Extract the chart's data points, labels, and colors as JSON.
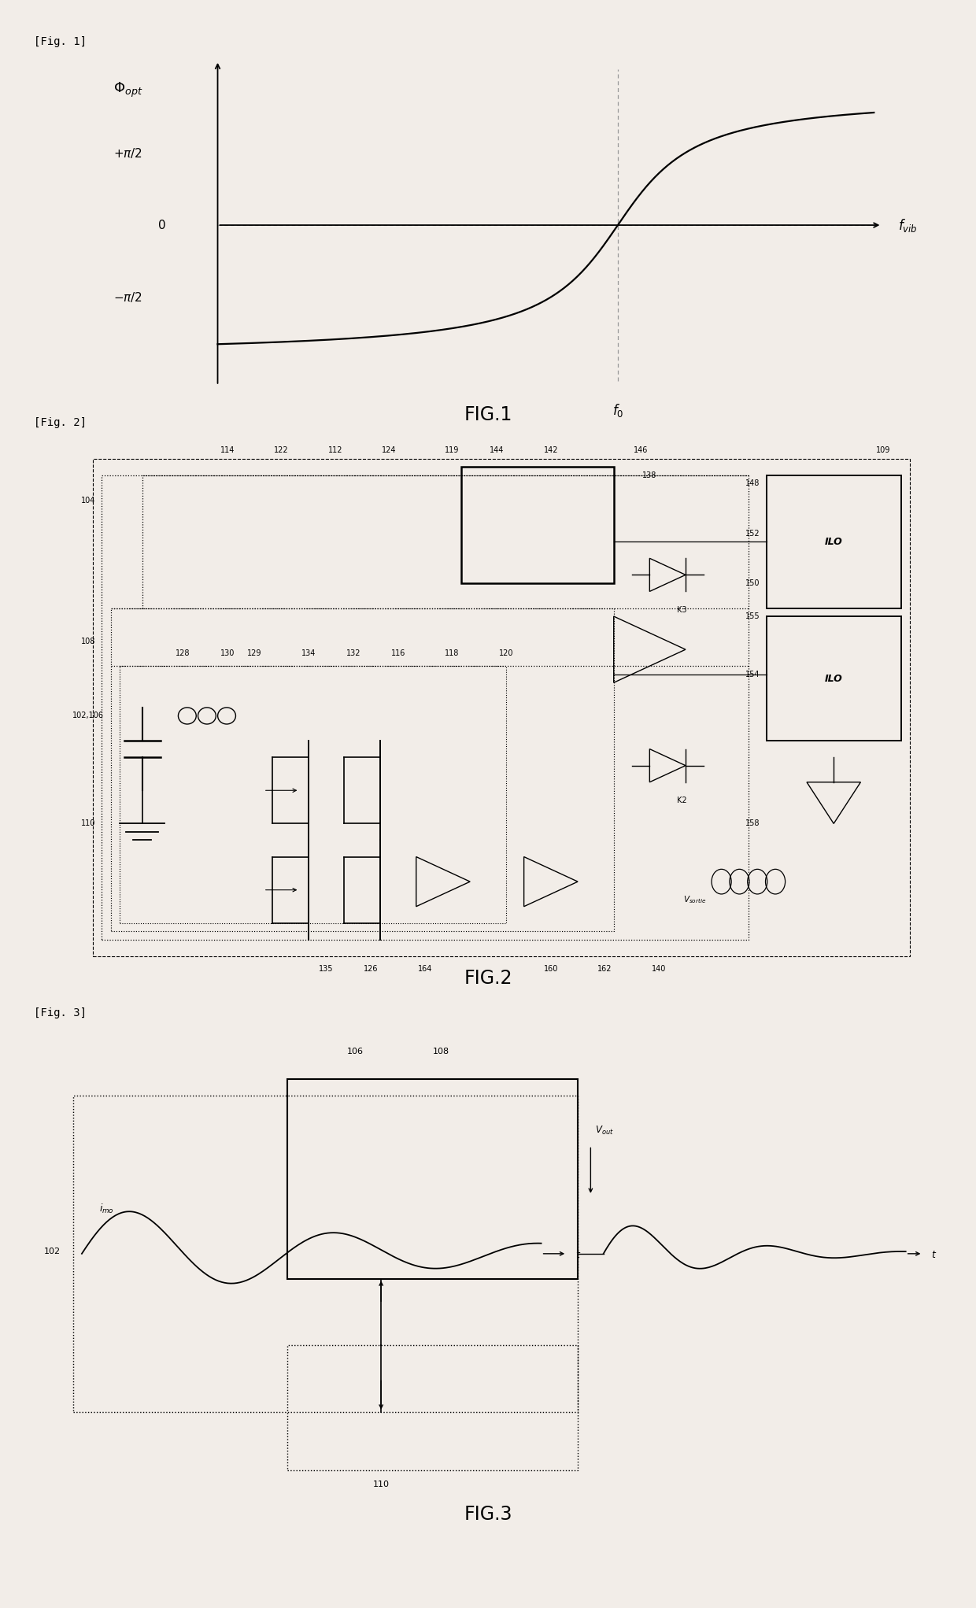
{
  "bg_color": "#f2ede8",
  "fig1_label": "[Fig. 1]",
  "fig2_label": "[Fig. 2]",
  "fig3_label": "[Fig. 3]",
  "fig1_title": "FIG.1",
  "fig2_title": "FIG.2",
  "fig3_title": "FIG.3",
  "phi_opt": "Φopt",
  "plus_pi2": "+π/2",
  "zero": "0",
  "minus_pi2": "-π/2",
  "f_vib": "f_{vib}",
  "f0": "f_0"
}
